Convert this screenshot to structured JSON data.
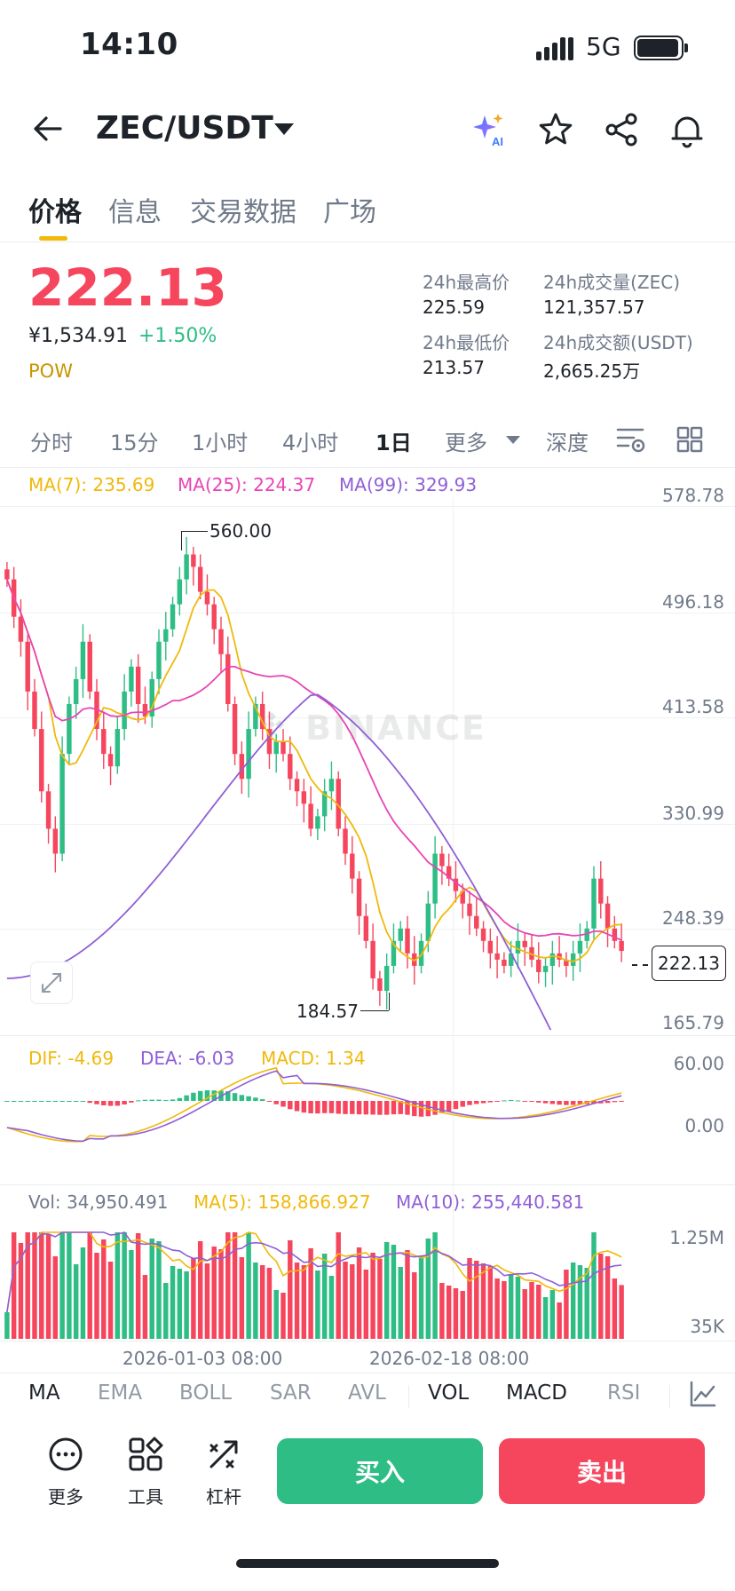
{
  "status": {
    "time": "14:10",
    "network": "5G"
  },
  "header": {
    "pair": "ZEC/USDT"
  },
  "tabs": [
    "价格",
    "信息",
    "交易数据",
    "广场"
  ],
  "price": {
    "last": "222.13",
    "cny": "¥1,534.91",
    "change": "+1.50%",
    "tag": "POW"
  },
  "stats": {
    "high_label": "24h最高价",
    "high": "225.59",
    "low_label": "24h最低价",
    "low": "213.57",
    "vol_label": "24h成交量(ZEC)",
    "vol": "121,357.57",
    "amt_label": "24h成交额(USDT)",
    "amt": "2,665.25万"
  },
  "intervals": [
    "分时",
    "15分",
    "1小时",
    "4小时",
    "1日",
    "更多",
    "深度"
  ],
  "ma_legend": {
    "ma7": "MA(7): 235.69",
    "ma25": "MA(25): 224.37",
    "ma99": "MA(99): 329.93"
  },
  "price_axis": [
    "578.78",
    "496.18",
    "413.58",
    "330.99",
    "248.39",
    "165.79"
  ],
  "current_price_label": "222.13",
  "high_marker": "560.00",
  "low_marker": "184.57",
  "watermark": "BINANCE",
  "macd": {
    "dif": "DIF: -4.69",
    "dea": "DEA: -6.03",
    "macd": "MACD: 1.34",
    "axis_top": "60.00",
    "axis_zero": "0.00"
  },
  "volume": {
    "vol": "Vol: 34,950.491",
    "ma5": "MA(5): 158,866.927",
    "ma10": "MA(10): 255,440.581",
    "axis_top": "1.25M",
    "axis_bottom": "35K"
  },
  "dates": [
    "2026-01-03 08:00",
    "2026-02-18 08:00"
  ],
  "indicators": [
    "MA",
    "EMA",
    "BOLL",
    "SAR",
    "AVL",
    "VOL",
    "MACD",
    "RSI"
  ],
  "bottom": {
    "more": "更多",
    "tools": "工具",
    "leverage": "杠杆",
    "buy": "买入",
    "sell": "卖出"
  },
  "colors": {
    "up": "#2ebd85",
    "down": "#f6465d",
    "ma7": "#f0b90b",
    "ma25": "#e844b5",
    "ma99": "#8f5fd6",
    "accent": "#f0b90b"
  },
  "chart_data": {
    "type": "candlestick",
    "y_range": [
      165.79,
      578.78
    ],
    "close": [
      520,
      490,
      470,
      430,
      400,
      350,
      320,
      300,
      380,
      420,
      440,
      470,
      430,
      400,
      380,
      370,
      400,
      430,
      450,
      420,
      410,
      440,
      470,
      480,
      500,
      520,
      540,
      530,
      510,
      500,
      480,
      460,
      420,
      380,
      360,
      400,
      420,
      400,
      380,
      390,
      380,
      360,
      350,
      340,
      320,
      330,
      350,
      360,
      320,
      300,
      280,
      250,
      230,
      200,
      190,
      210,
      230,
      240,
      220,
      210,
      230,
      260,
      300,
      290,
      280,
      270,
      260,
      250,
      240,
      230,
      220,
      215,
      210,
      220,
      230,
      225,
      215,
      205,
      210,
      220,
      215,
      210,
      220,
      230,
      240,
      280,
      260,
      240,
      230,
      222
    ],
    "ma7_current": 235.69,
    "ma25_current": 224.37,
    "ma99_current": 329.93
  }
}
